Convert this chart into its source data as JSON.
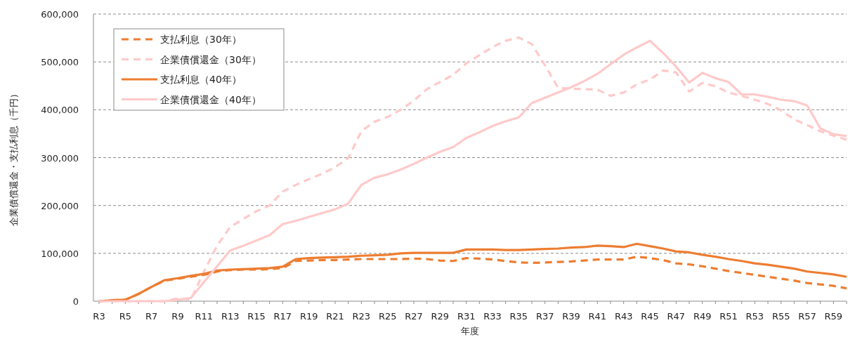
{
  "chart_data": {
    "type": "line",
    "xlabel": "年度",
    "ylabel": "企業債償還金・支払利息（千円）",
    "categories": [
      "R3",
      null,
      "R5",
      null,
      "R7",
      null,
      "R9",
      null,
      "R11",
      null,
      "R13",
      null,
      "R15",
      null,
      "R17",
      null,
      "R19",
      null,
      "R21",
      null,
      "R23",
      null,
      "R25",
      null,
      "R27",
      null,
      "R29",
      null,
      "R31",
      null,
      "R33",
      null,
      "R35",
      null,
      "R37",
      null,
      "R39",
      null,
      "R41",
      null,
      "R43",
      null,
      "R45",
      null,
      "R47",
      null,
      "R49",
      null,
      "R51",
      null,
      "R53",
      null,
      "R55",
      null,
      "R57",
      null,
      "R59",
      null
    ],
    "ylim": [
      0,
      600000
    ],
    "yticks": [
      {
        "value": 0,
        "label": "0"
      },
      {
        "value": 100000,
        "label": "100,000"
      },
      {
        "value": 200000,
        "label": "200,000"
      },
      {
        "value": 300000,
        "label": "300,000"
      },
      {
        "value": 400000,
        "label": "400,000"
      },
      {
        "value": 500000,
        "label": "500,000"
      },
      {
        "value": 600000,
        "label": "600,000"
      }
    ],
    "grid": "y",
    "legend": "top left",
    "series": [
      {
        "name": "支払利息（30年）",
        "color": "#ed7d31",
        "line_style": "dashed",
        "values": [
          0,
          2000,
          3000,
          15000,
          30000,
          43000,
          47000,
          51000,
          55000,
          62000,
          65000,
          66000,
          66000,
          67000,
          69000,
          84000,
          85000,
          86000,
          86000,
          87000,
          88000,
          88000,
          88000,
          88000,
          89000,
          88000,
          85000,
          84000,
          90000,
          89000,
          87000,
          84000,
          81000,
          80000,
          81000,
          82000,
          83000,
          85000,
          87000,
          87000,
          87000,
          93000,
          90000,
          86000,
          79000,
          77000,
          73000,
          68000,
          63000,
          59000,
          55000,
          51000,
          47000,
          43000,
          38000,
          35000,
          32000,
          27000
        ]
      },
      {
        "name": "企業債償還金（30年）",
        "color": "#ffc9c9",
        "line_style": "dashed",
        "values": [
          0,
          0,
          0,
          0,
          0,
          0,
          6000,
          3000,
          62000,
          116000,
          155000,
          172000,
          188000,
          200000,
          229000,
          243000,
          255000,
          266000,
          280000,
          299000,
          355000,
          375000,
          385000,
          400000,
          419000,
          443000,
          458000,
          473000,
          497000,
          514000,
          531000,
          544000,
          551000,
          537000,
          493000,
          446000,
          444000,
          443000,
          442000,
          429000,
          436000,
          453000,
          463000,
          482000,
          478000,
          438000,
          456000,
          449000,
          436000,
          429000,
          421000,
          412000,
          399000,
          380000,
          368000,
          355000,
          346000,
          337000
        ]
      },
      {
        "name": "支払利息（40年）",
        "color": "#ed7d31",
        "line_style": "solid",
        "values": [
          0,
          2000,
          3000,
          15000,
          30000,
          44000,
          48000,
          53000,
          57000,
          64000,
          66000,
          67000,
          68000,
          69000,
          72000,
          88000,
          90000,
          91000,
          92000,
          93000,
          95000,
          96000,
          97000,
          100000,
          101000,
          101000,
          101000,
          101000,
          108000,
          108000,
          108000,
          107000,
          107000,
          108000,
          109000,
          110000,
          112000,
          113000,
          116000,
          115000,
          113000,
          120000,
          115000,
          110000,
          104000,
          102000,
          97000,
          93000,
          88000,
          84000,
          79000,
          76000,
          72000,
          68000,
          62000,
          59000,
          56000,
          51000
        ]
      },
      {
        "name": "企業債償還金（40年）",
        "color": "#ffc9c9",
        "line_style": "solid",
        "values": [
          0,
          0,
          0,
          0,
          0,
          0,
          3000,
          7000,
          40000,
          73000,
          106000,
          116000,
          127000,
          138000,
          161000,
          168000,
          176000,
          184000,
          192000,
          204000,
          243000,
          258000,
          265000,
          275000,
          287000,
          300000,
          312000,
          322000,
          341000,
          353000,
          366000,
          376000,
          384000,
          414000,
          425000,
          436000,
          447000,
          460000,
          475000,
          495000,
          515000,
          530000,
          544000,
          519000,
          490000,
          457000,
          477000,
          466000,
          458000,
          432000,
          432000,
          427000,
          421000,
          418000,
          409000,
          361000,
          349000,
          345000
        ]
      }
    ]
  }
}
